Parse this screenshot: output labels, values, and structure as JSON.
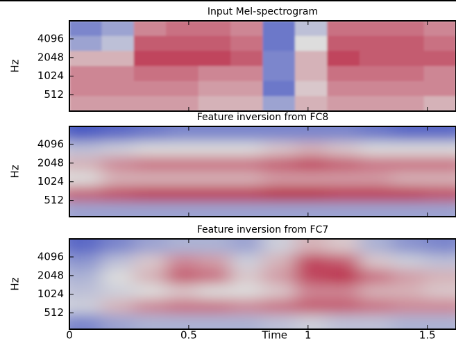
{
  "chart_data": [
    {
      "type": "heatmap",
      "title": "Input Mel-spectrogram",
      "ylabel": "Hz",
      "log_y": true,
      "xlim": [
        0,
        1.62
      ],
      "ylim": [
        280,
        8000
      ],
      "yticks": [
        4096,
        2048,
        1024,
        512
      ],
      "colormap": [
        "#3b4cc0",
        "#dddddd",
        "#b40426"
      ],
      "values": [
        [
          0.2,
          0.3,
          0.7,
          0.75,
          0.75,
          0.7,
          0.15,
          0.4,
          0.75,
          0.75,
          0.75,
          0.7
        ],
        [
          0.3,
          0.4,
          0.8,
          0.8,
          0.8,
          0.75,
          0.15,
          0.5,
          0.8,
          0.8,
          0.8,
          0.75
        ],
        [
          0.6,
          0.6,
          0.85,
          0.85,
          0.85,
          0.8,
          0.2,
          0.6,
          0.85,
          0.8,
          0.8,
          0.8
        ],
        [
          0.7,
          0.7,
          0.75,
          0.75,
          0.7,
          0.7,
          0.2,
          0.6,
          0.75,
          0.75,
          0.75,
          0.7
        ],
        [
          0.7,
          0.7,
          0.7,
          0.7,
          0.65,
          0.65,
          0.15,
          0.55,
          0.7,
          0.7,
          0.7,
          0.7
        ],
        [
          0.65,
          0.65,
          0.65,
          0.65,
          0.6,
          0.6,
          0.3,
          0.6,
          0.65,
          0.65,
          0.65,
          0.6
        ]
      ]
    },
    {
      "type": "heatmap",
      "title": "Feature inversion from FC8",
      "ylabel": "Hz",
      "log_y": true,
      "smooth": true,
      "xlim": [
        0,
        1.62
      ],
      "ylim": [
        280,
        8000
      ],
      "yticks": [
        4096,
        2048,
        1024,
        512
      ],
      "colormap": [
        "#3b4cc0",
        "#dddddd",
        "#b40426"
      ],
      "values": [
        [
          0.05,
          0.1,
          0.15,
          0.2,
          0.2,
          0.2,
          0.2,
          0.2,
          0.2,
          0.15,
          0.1,
          0.1
        ],
        [
          0.4,
          0.45,
          0.5,
          0.5,
          0.5,
          0.5,
          0.55,
          0.6,
          0.55,
          0.5,
          0.5,
          0.5
        ],
        [
          0.6,
          0.7,
          0.75,
          0.75,
          0.75,
          0.75,
          0.8,
          0.85,
          0.8,
          0.75,
          0.75,
          0.75
        ],
        [
          0.5,
          0.6,
          0.6,
          0.6,
          0.6,
          0.6,
          0.65,
          0.65,
          0.65,
          0.65,
          0.6,
          0.6
        ],
        [
          0.8,
          0.85,
          0.9,
          0.9,
          0.9,
          0.9,
          0.95,
          0.95,
          0.9,
          0.9,
          0.9,
          0.85
        ],
        [
          0.3,
          0.3,
          0.3,
          0.3,
          0.3,
          0.3,
          0.3,
          0.3,
          0.3,
          0.3,
          0.3,
          0.3
        ]
      ]
    },
    {
      "type": "heatmap",
      "title": "Feature inversion from FC7",
      "ylabel": "Hz",
      "xlabel": "Time",
      "log_y": true,
      "smooth": true,
      "xlim": [
        0,
        1.62
      ],
      "ylim": [
        280,
        8000
      ],
      "yticks": [
        4096,
        2048,
        1024,
        512
      ],
      "xticks": [
        0,
        0.5,
        1,
        1.5
      ],
      "colormap": [
        "#3b4cc0",
        "#dddddd",
        "#b40426"
      ],
      "values": [
        [
          0.1,
          0.2,
          0.3,
          0.35,
          0.35,
          0.3,
          0.45,
          0.6,
          0.55,
          0.35,
          0.25,
          0.2
        ],
        [
          0.25,
          0.4,
          0.55,
          0.7,
          0.65,
          0.45,
          0.6,
          0.85,
          0.8,
          0.55,
          0.45,
          0.4
        ],
        [
          0.35,
          0.5,
          0.6,
          0.8,
          0.75,
          0.55,
          0.65,
          0.85,
          0.9,
          0.75,
          0.65,
          0.6
        ],
        [
          0.4,
          0.45,
          0.5,
          0.55,
          0.5,
          0.5,
          0.55,
          0.7,
          0.7,
          0.6,
          0.6,
          0.55
        ],
        [
          0.45,
          0.6,
          0.7,
          0.75,
          0.75,
          0.7,
          0.75,
          0.8,
          0.8,
          0.75,
          0.7,
          0.7
        ],
        [
          0.2,
          0.3,
          0.35,
          0.35,
          0.35,
          0.35,
          0.4,
          0.45,
          0.4,
          0.4,
          0.35,
          0.35
        ]
      ]
    }
  ]
}
